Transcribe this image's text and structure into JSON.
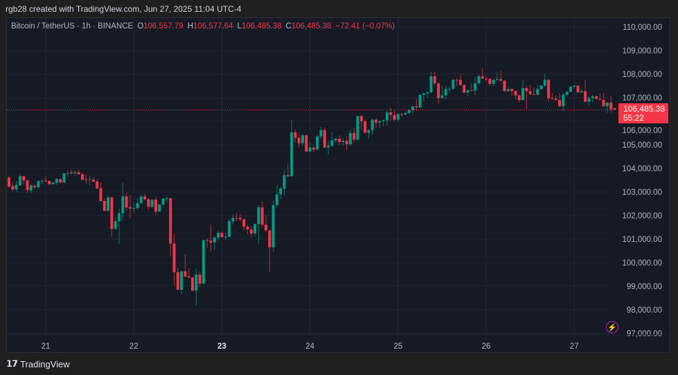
{
  "header": {
    "credit": "rgb28 created with TradingView.com, Jun 27, 2025 11:04 UTC-4"
  },
  "legend": {
    "symbol": "Bitcoin / TetherUS · 1h · BINANCE",
    "open_label": "O",
    "open": "106,557.79",
    "high_label": "H",
    "high": "106,577.64",
    "low_label": "L",
    "low": "106,485.38",
    "close_label": "C",
    "close": "106,485.38",
    "change": "−72.41 (−0.07%)"
  },
  "price_tag": {
    "price": "106,485.38",
    "countdown": "55:22"
  },
  "footer": {
    "logo_mark": "TV",
    "brand": "TradingView"
  },
  "icons": {
    "alert": "lightning-bolt-icon"
  },
  "colors": {
    "up": "#089981",
    "down": "#f23645",
    "background": "#161a25",
    "grid": "#232734",
    "last_price": "#f23645"
  },
  "chart_data": {
    "type": "candlestick",
    "title": "Bitcoin / TetherUS · 1h · BINANCE",
    "interval": "1h",
    "ylim": [
      97000,
      110000
    ],
    "y_ticks": [
      "110,000.00",
      "109,000.00",
      "108,000.00",
      "107,000.00",
      "106,000.00",
      "105,000.00",
      "104,000.00",
      "103,000.00",
      "102,000.00",
      "101,000.00",
      "100,000.00",
      "99,000.00",
      "98,000.00",
      "97,000.00"
    ],
    "y_tick_values": [
      110000,
      109000,
      108000,
      107000,
      106000,
      105000,
      104000,
      103000,
      102000,
      101000,
      100000,
      99000,
      98000,
      97000
    ],
    "x_ticks": [
      "21",
      "22",
      "23",
      "24",
      "25",
      "26",
      "27"
    ],
    "x_tick_bold": "23",
    "grid": true,
    "last_price": 106485.38,
    "ohlc_fields": [
      "open",
      "high",
      "low",
      "close"
    ],
    "candles": [
      [
        103620,
        103670,
        103180,
        103230
      ],
      [
        103250,
        103420,
        103030,
        103110
      ],
      [
        103110,
        103470,
        102980,
        103300
      ],
      [
        103280,
        103790,
        103270,
        103670
      ],
      [
        103670,
        103690,
        103320,
        103490
      ],
      [
        103490,
        103520,
        102950,
        103080
      ],
      [
        103060,
        103320,
        102950,
        103280
      ],
      [
        103260,
        103320,
        103110,
        103200
      ],
      [
        103200,
        103490,
        103130,
        103470
      ],
      [
        103470,
        103520,
        103350,
        103480
      ],
      [
        103490,
        103670,
        103450,
        103450
      ],
      [
        103470,
        103490,
        103330,
        103330
      ],
      [
        103330,
        103420,
        103330,
        103400
      ],
      [
        103390,
        103590,
        103300,
        103550
      ],
      [
        103550,
        103570,
        103350,
        103410
      ],
      [
        103400,
        103810,
        103400,
        103790
      ],
      [
        103790,
        103910,
        103650,
        103800
      ],
      [
        103830,
        103960,
        103740,
        103790
      ],
      [
        103790,
        103910,
        103700,
        103840
      ],
      [
        103840,
        103940,
        103740,
        103750
      ],
      [
        103760,
        103840,
        103490,
        103520
      ],
      [
        103550,
        103740,
        103350,
        103540
      ],
      [
        103530,
        103670,
        103280,
        103550
      ],
      [
        103530,
        103620,
        103420,
        103440
      ],
      [
        103450,
        103550,
        103130,
        103150
      ],
      [
        103160,
        103400,
        102610,
        102610
      ],
      [
        102620,
        102740,
        102180,
        102200
      ],
      [
        102200,
        102860,
        102180,
        102770
      ],
      [
        102770,
        102790,
        101100,
        101430
      ],
      [
        101430,
        101950,
        101410,
        101760
      ],
      [
        101760,
        102300,
        100810,
        102100
      ],
      [
        102100,
        103390,
        101810,
        102810
      ],
      [
        102810,
        102980,
        102200,
        102340
      ],
      [
        102360,
        102880,
        101870,
        102300
      ],
      [
        102300,
        102590,
        102100,
        102320
      ],
      [
        102320,
        102770,
        102250,
        102530
      ],
      [
        102530,
        102900,
        102490,
        102810
      ],
      [
        102810,
        102930,
        102640,
        102690
      ],
      [
        102690,
        102740,
        102250,
        102370
      ],
      [
        102370,
        102690,
        102310,
        102670
      ],
      [
        102670,
        102800,
        102050,
        102170
      ],
      [
        102170,
        102490,
        102150,
        102470
      ],
      [
        102470,
        102740,
        102410,
        102720
      ],
      [
        102720,
        102830,
        102570,
        102730
      ],
      [
        102730,
        102740,
        100260,
        100810
      ],
      [
        100810,
        101220,
        99040,
        99600
      ],
      [
        99600,
        99800,
        98840,
        98850
      ],
      [
        98850,
        99650,
        98670,
        99630
      ],
      [
        99630,
        100360,
        99380,
        99420
      ],
      [
        99420,
        99750,
        99330,
        99370
      ],
      [
        99370,
        99400,
        98770,
        98820
      ],
      [
        98820,
        99750,
        98180,
        99500
      ],
      [
        99500,
        99630,
        98980,
        99110
      ],
      [
        99110,
        100970,
        99100,
        100960
      ],
      [
        100960,
        101020,
        100630,
        100940
      ],
      [
        100940,
        101610,
        100460,
        100860
      ],
      [
        100860,
        101120,
        100530,
        101070
      ],
      [
        101070,
        101360,
        100940,
        101270
      ],
      [
        101270,
        101320,
        101050,
        101090
      ],
      [
        101090,
        101270,
        100970,
        101100
      ],
      [
        101100,
        101850,
        101080,
        101760
      ],
      [
        101760,
        102050,
        101610,
        101900
      ],
      [
        101900,
        102100,
        101760,
        101890
      ],
      [
        101900,
        102050,
        101760,
        101840
      ],
      [
        101840,
        101880,
        101370,
        101530
      ],
      [
        101530,
        101610,
        101220,
        101410
      ],
      [
        101410,
        101560,
        101070,
        101240
      ],
      [
        101240,
        101660,
        101120,
        101640
      ],
      [
        101640,
        102440,
        100780,
        102350
      ],
      [
        102350,
        102590,
        101510,
        101610
      ],
      [
        101610,
        102020,
        101300,
        101370
      ],
      [
        101370,
        101410,
        99600,
        100650
      ],
      [
        100650,
        102640,
        100480,
        102440
      ],
      [
        102440,
        103280,
        102390,
        102900
      ],
      [
        102900,
        103230,
        102670,
        103150
      ],
      [
        103150,
        103910,
        102860,
        103720
      ],
      [
        103720,
        104210,
        103620,
        103670
      ],
      [
        103670,
        106070,
        103660,
        105530
      ],
      [
        105530,
        105650,
        105110,
        105300
      ],
      [
        105300,
        105480,
        104890,
        105070
      ],
      [
        105070,
        105480,
        104940,
        105410
      ],
      [
        105410,
        105430,
        104700,
        104720
      ],
      [
        104720,
        105090,
        104700,
        104880
      ],
      [
        104880,
        104940,
        104680,
        104800
      ],
      [
        104800,
        105430,
        104770,
        105360
      ],
      [
        105360,
        105780,
        105260,
        105630
      ],
      [
        105630,
        105750,
        104870,
        104890
      ],
      [
        104890,
        105160,
        104600,
        104960
      ],
      [
        104960,
        105550,
        104920,
        105190
      ],
      [
        105190,
        105310,
        105090,
        105260
      ],
      [
        105260,
        105410,
        104990,
        105120
      ],
      [
        105120,
        105290,
        104960,
        105170
      ],
      [
        105170,
        105350,
        104780,
        105030
      ],
      [
        105030,
        105650,
        104940,
        105500
      ],
      [
        105500,
        105710,
        105120,
        105220
      ],
      [
        105220,
        106240,
        105170,
        106220
      ],
      [
        106220,
        106270,
        105610,
        106000
      ],
      [
        106000,
        106070,
        105500,
        105510
      ],
      [
        105510,
        105650,
        105270,
        105630
      ],
      [
        105630,
        106100,
        105430,
        106070
      ],
      [
        106070,
        106120,
        105710,
        105950
      ],
      [
        105950,
        106040,
        105710,
        106000
      ],
      [
        106000,
        106070,
        105780,
        106040
      ],
      [
        106040,
        106460,
        105800,
        106380
      ],
      [
        106380,
        106560,
        106020,
        106270
      ],
      [
        106270,
        106460,
        106020,
        106070
      ],
      [
        106070,
        106360,
        106000,
        106300
      ],
      [
        106300,
        106360,
        106200,
        106290
      ],
      [
        106290,
        106400,
        106250,
        106350
      ],
      [
        106350,
        106500,
        106290,
        106470
      ],
      [
        106470,
        106660,
        106340,
        106630
      ],
      [
        106630,
        106950,
        106430,
        106590
      ],
      [
        106590,
        107150,
        106560,
        107120
      ],
      [
        107120,
        107250,
        106850,
        107180
      ],
      [
        107180,
        107300,
        107000,
        107230
      ],
      [
        107230,
        108110,
        107180,
        107910
      ],
      [
        107910,
        108110,
        107510,
        107610
      ],
      [
        107610,
        107640,
        106740,
        106980
      ],
      [
        106980,
        107490,
        106950,
        107100
      ],
      [
        107100,
        107490,
        106900,
        107370
      ],
      [
        107370,
        107490,
        107200,
        107380
      ],
      [
        107380,
        107790,
        107340,
        107760
      ],
      [
        107760,
        107810,
        107490,
        107750
      ],
      [
        107750,
        108000,
        107490,
        107540
      ],
      [
        107540,
        107570,
        107200,
        107220
      ],
      [
        107220,
        107340,
        107070,
        107320
      ],
      [
        107320,
        107610,
        107270,
        107310
      ],
      [
        107310,
        107880,
        107100,
        107610
      ],
      [
        107610,
        108010,
        107570,
        107910
      ],
      [
        107910,
        108260,
        107800,
        107810
      ],
      [
        107810,
        107930,
        107690,
        107800
      ],
      [
        107800,
        107830,
        107510,
        107590
      ],
      [
        107590,
        107790,
        107510,
        107760
      ],
      [
        107760,
        108080,
        107720,
        107790
      ],
      [
        107790,
        108150,
        107690,
        107720
      ],
      [
        107720,
        107760,
        107250,
        107280
      ],
      [
        107280,
        107490,
        107250,
        107370
      ],
      [
        107370,
        107410,
        107100,
        107280
      ],
      [
        107280,
        107320,
        106900,
        107100
      ],
      [
        107100,
        107150,
        106800,
        106900
      ],
      [
        106900,
        107770,
        106880,
        107410
      ],
      [
        107410,
        107510,
        106540,
        107280
      ],
      [
        107280,
        107540,
        107100,
        107150
      ],
      [
        107150,
        107440,
        107120,
        107130
      ],
      [
        107130,
        107570,
        107110,
        107370
      ],
      [
        107370,
        107540,
        107340,
        107520
      ],
      [
        107520,
        108000,
        107470,
        107760
      ],
      [
        107760,
        107790,
        106820,
        106980
      ],
      [
        106980,
        107220,
        106930,
        106960
      ],
      [
        106960,
        107100,
        106880,
        106900
      ],
      [
        106900,
        107200,
        106610,
        106640
      ],
      [
        106640,
        107200,
        106440,
        107130
      ],
      [
        107130,
        107300,
        107050,
        107250
      ],
      [
        107250,
        107490,
        107220,
        107470
      ],
      [
        107470,
        107540,
        107390,
        107510
      ],
      [
        107510,
        107530,
        107200,
        107230
      ],
      [
        107230,
        107390,
        107200,
        107280
      ],
      [
        107280,
        107740,
        106830,
        106830
      ],
      [
        106830,
        107100,
        106680,
        106980
      ],
      [
        106980,
        107120,
        106800,
        107060
      ],
      [
        107060,
        107100,
        106930,
        106950
      ],
      [
        106950,
        107180,
        106900,
        106910
      ],
      [
        106910,
        107200,
        106610,
        106640
      ],
      [
        106640,
        106810,
        106360,
        106800
      ],
      [
        106800,
        107100,
        106360,
        106510
      ],
      [
        106557.79,
        106577.64,
        106485.38,
        106485.38
      ]
    ]
  }
}
